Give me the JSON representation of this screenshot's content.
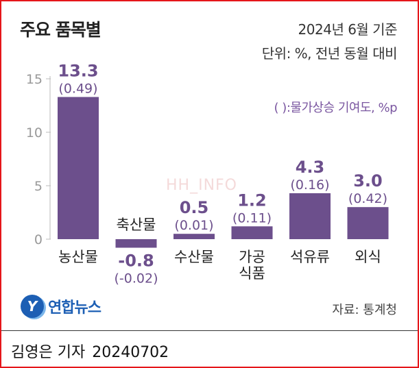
{
  "header": {
    "title": "주요 품목별",
    "basis": "2024년 6월 기준",
    "unit": "단위: %, 전년 동월 대비",
    "contribution_note": "( ):물가상승 기여도, %p"
  },
  "chart_data": {
    "type": "bar",
    "title": "주요 품목별",
    "categories": [
      "농산물",
      "축산물",
      "수산물",
      "가공\n식품",
      "석유류",
      "외식"
    ],
    "series": [
      {
        "values": [
          13.3,
          -0.8,
          0.5,
          1.2,
          4.3,
          3.0
        ]
      }
    ],
    "value_labels": [
      "13.3",
      "-0.8",
      "0.5",
      "1.2",
      "4.3",
      "3.0"
    ],
    "contribution_labels": [
      "(0.49)",
      "(-0.02)",
      "(0.01)",
      "(0.11)",
      "(0.16)",
      "(0.42)"
    ],
    "yticks": [
      "0",
      "5",
      "10",
      "15"
    ],
    "ylim": [
      -0.8,
      15
    ],
    "grid": false,
    "colors": {
      "bar": "#6c4f8c",
      "value_text": "#6c4f8c",
      "axis_text": "#999999"
    }
  },
  "footer": {
    "source": "자료: 통계청",
    "logo_mark": "Y",
    "logo_text": "연합뉴스",
    "reporter": "김영은 기자",
    "date": "20240702",
    "watermark": "HH_INFO"
  }
}
